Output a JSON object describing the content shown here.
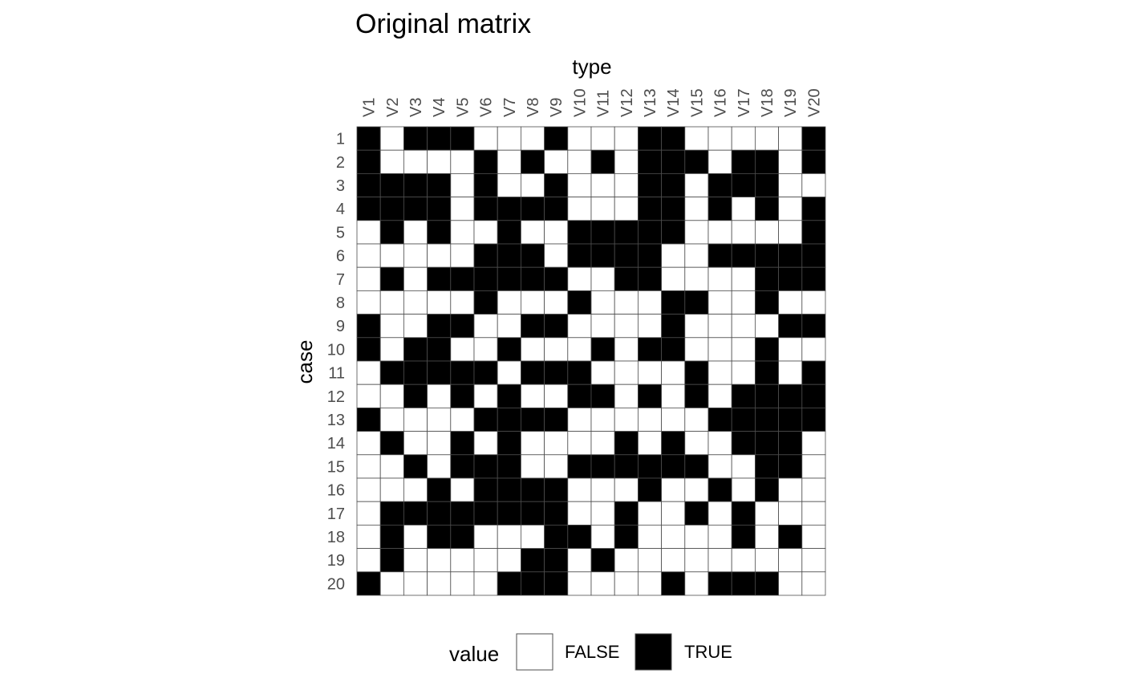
{
  "chart_data": {
    "type": "heatmap",
    "title": "Original matrix",
    "xlabel": "type",
    "ylabel": "case",
    "columns": [
      "V1",
      "V2",
      "V3",
      "V4",
      "V5",
      "V6",
      "V7",
      "V8",
      "V9",
      "V10",
      "V11",
      "V12",
      "V13",
      "V14",
      "V15",
      "V16",
      "V17",
      "V18",
      "V19",
      "V20"
    ],
    "rows": [
      "1",
      "2",
      "3",
      "4",
      "5",
      "6",
      "7",
      "8",
      "9",
      "10",
      "11",
      "12",
      "13",
      "14",
      "15",
      "16",
      "17",
      "18",
      "19",
      "20"
    ],
    "values": [
      [
        1,
        0,
        1,
        1,
        1,
        0,
        0,
        0,
        1,
        0,
        0,
        0,
        1,
        1,
        0,
        0,
        0,
        0,
        0,
        1
      ],
      [
        1,
        0,
        0,
        0,
        0,
        1,
        0,
        1,
        0,
        0,
        1,
        0,
        1,
        1,
        1,
        0,
        1,
        1,
        0,
        1
      ],
      [
        1,
        1,
        1,
        1,
        0,
        1,
        0,
        0,
        1,
        0,
        0,
        0,
        1,
        1,
        0,
        1,
        1,
        1,
        0,
        0
      ],
      [
        1,
        1,
        1,
        1,
        0,
        1,
        1,
        1,
        1,
        0,
        0,
        0,
        1,
        1,
        0,
        1,
        0,
        1,
        0,
        1
      ],
      [
        0,
        1,
        0,
        1,
        0,
        0,
        1,
        0,
        0,
        1,
        1,
        1,
        1,
        1,
        0,
        0,
        0,
        0,
        0,
        1
      ],
      [
        0,
        0,
        0,
        0,
        0,
        1,
        1,
        1,
        0,
        1,
        1,
        1,
        1,
        0,
        0,
        1,
        1,
        1,
        1,
        1
      ],
      [
        0,
        1,
        0,
        1,
        1,
        1,
        1,
        1,
        1,
        0,
        0,
        1,
        1,
        0,
        0,
        0,
        0,
        1,
        1,
        1
      ],
      [
        0,
        0,
        0,
        0,
        0,
        1,
        0,
        0,
        0,
        1,
        0,
        0,
        0,
        1,
        1,
        0,
        0,
        1,
        0,
        0
      ],
      [
        1,
        0,
        0,
        1,
        1,
        0,
        0,
        1,
        1,
        0,
        0,
        0,
        0,
        1,
        0,
        0,
        0,
        0,
        1,
        1
      ],
      [
        1,
        0,
        1,
        1,
        0,
        0,
        1,
        0,
        0,
        0,
        1,
        0,
        1,
        1,
        0,
        0,
        0,
        1,
        0,
        0
      ],
      [
        0,
        1,
        1,
        1,
        1,
        1,
        0,
        1,
        1,
        1,
        0,
        0,
        0,
        0,
        1,
        0,
        0,
        1,
        0,
        1
      ],
      [
        0,
        0,
        1,
        0,
        1,
        0,
        1,
        0,
        0,
        1,
        1,
        0,
        1,
        0,
        1,
        0,
        1,
        1,
        1,
        1
      ],
      [
        1,
        0,
        0,
        0,
        0,
        1,
        1,
        1,
        1,
        0,
        0,
        0,
        0,
        0,
        0,
        1,
        1,
        1,
        1,
        1
      ],
      [
        0,
        1,
        0,
        0,
        1,
        0,
        1,
        0,
        0,
        0,
        0,
        1,
        0,
        1,
        0,
        0,
        1,
        1,
        1,
        0
      ],
      [
        0,
        0,
        1,
        0,
        1,
        1,
        1,
        0,
        0,
        1,
        1,
        1,
        1,
        1,
        1,
        0,
        0,
        1,
        1,
        0
      ],
      [
        0,
        0,
        0,
        1,
        0,
        1,
        1,
        1,
        1,
        0,
        0,
        0,
        1,
        0,
        0,
        1,
        0,
        1,
        0,
        0
      ],
      [
        0,
        1,
        1,
        1,
        1,
        1,
        1,
        1,
        1,
        0,
        0,
        1,
        0,
        0,
        1,
        0,
        1,
        0,
        0,
        0
      ],
      [
        0,
        1,
        0,
        1,
        1,
        0,
        0,
        0,
        1,
        1,
        0,
        1,
        0,
        0,
        0,
        0,
        1,
        0,
        1,
        0
      ],
      [
        0,
        1,
        0,
        0,
        0,
        0,
        0,
        1,
        1,
        0,
        1,
        0,
        0,
        0,
        0,
        0,
        0,
        0,
        0,
        0
      ],
      [
        1,
        0,
        0,
        0,
        0,
        0,
        1,
        1,
        1,
        0,
        0,
        0,
        0,
        1,
        0,
        1,
        1,
        1,
        0,
        0
      ]
    ],
    "legend": {
      "title": "value",
      "entries": [
        {
          "label": "FALSE",
          "color": "#ffffff"
        },
        {
          "label": "TRUE",
          "color": "#000000"
        }
      ],
      "position": "bottom"
    },
    "colors": {
      "true": "#000000",
      "false": "#ffffff",
      "grid": "#4d4d4d",
      "tick": "#4d4d4d"
    }
  }
}
